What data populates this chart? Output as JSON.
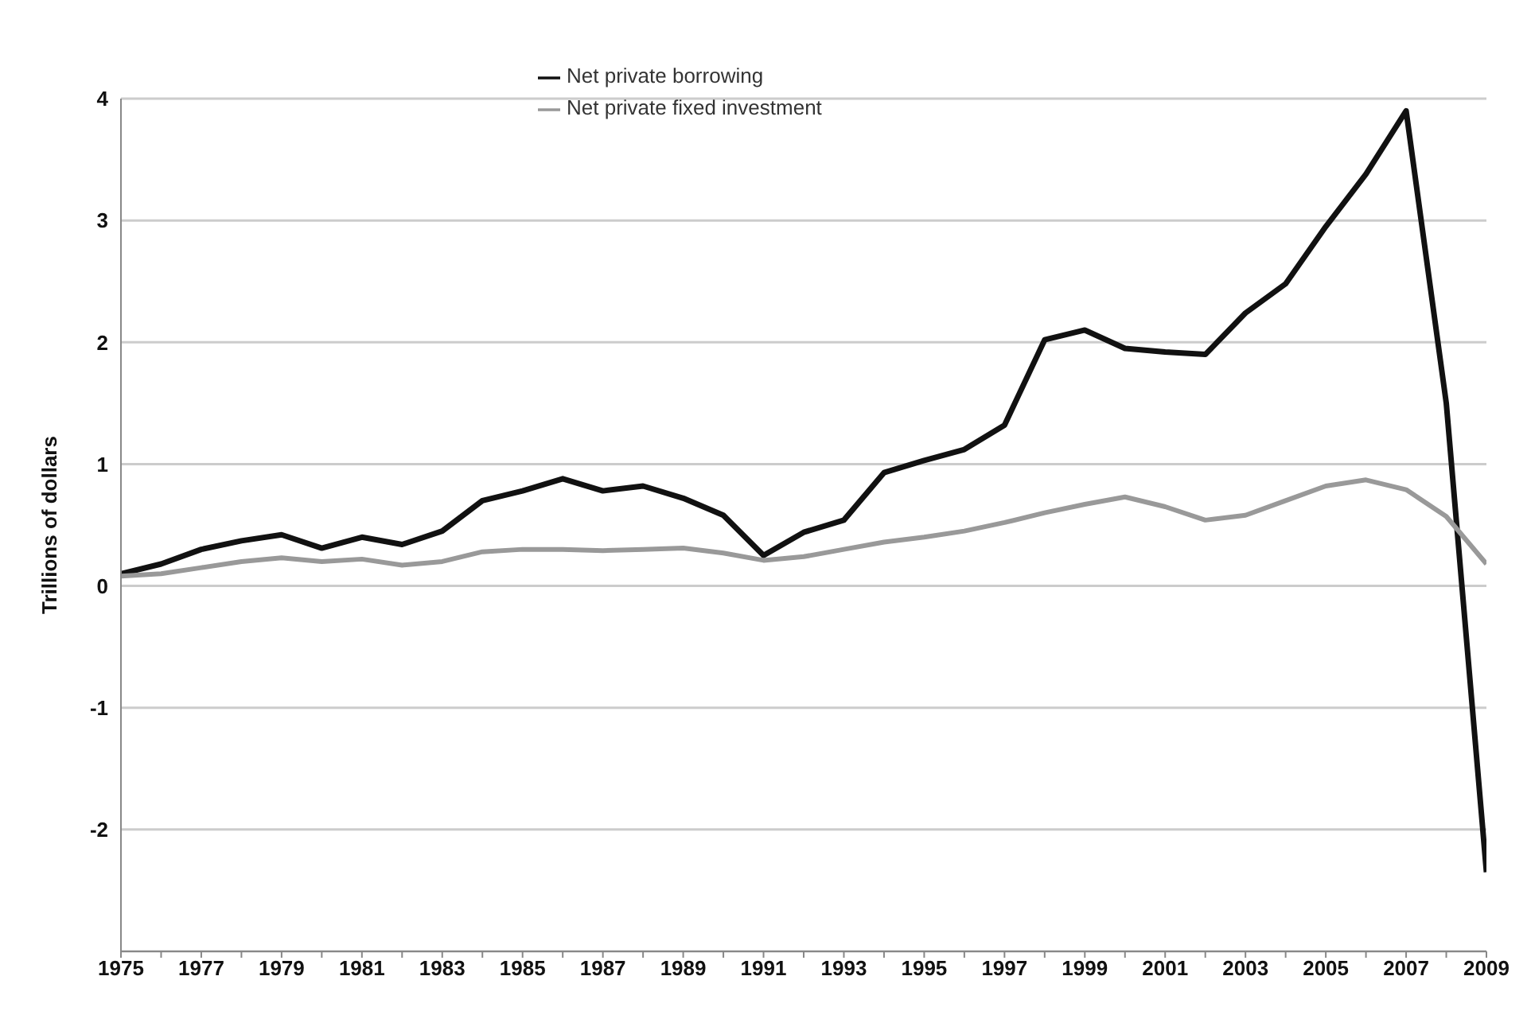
{
  "chart_data": {
    "type": "line",
    "ylabel": "Trillions of dollars",
    "x": [
      1975,
      1976,
      1977,
      1978,
      1979,
      1980,
      1981,
      1982,
      1983,
      1984,
      1985,
      1986,
      1987,
      1988,
      1989,
      1990,
      1991,
      1992,
      1993,
      1994,
      1995,
      1996,
      1997,
      1998,
      1999,
      2000,
      2001,
      2002,
      2003,
      2004,
      2005,
      2006,
      2007,
      2008,
      2009
    ],
    "series": [
      {
        "name": "Net private borrowing",
        "color": "#111111",
        "values": [
          0.1,
          0.18,
          0.3,
          0.37,
          0.42,
          0.31,
          0.4,
          0.34,
          0.45,
          0.7,
          0.78,
          0.88,
          0.78,
          0.82,
          0.72,
          0.58,
          0.25,
          0.44,
          0.54,
          0.93,
          1.03,
          1.12,
          1.32,
          2.02,
          2.1,
          1.95,
          1.92,
          1.9,
          2.24,
          2.48,
          2.95,
          3.38,
          3.9,
          1.5,
          -2.35
        ]
      },
      {
        "name": "Net private fixed investment",
        "color": "#999999",
        "values": [
          0.08,
          0.1,
          0.15,
          0.2,
          0.23,
          0.2,
          0.22,
          0.17,
          0.2,
          0.28,
          0.3,
          0.3,
          0.29,
          0.3,
          0.31,
          0.27,
          0.21,
          0.24,
          0.3,
          0.36,
          0.4,
          0.45,
          0.52,
          0.6,
          0.67,
          0.73,
          0.65,
          0.54,
          0.58,
          0.7,
          0.82,
          0.87,
          0.79,
          0.57,
          0.18
        ]
      }
    ],
    "xlim": [
      1975,
      2009
    ],
    "xticks": [
      1975,
      {
        "value": 1976,
        "label": null
      },
      1977,
      {
        "value": 1978,
        "label": null
      },
      1979,
      {
        "value": 1980,
        "label": null
      },
      1981,
      {
        "value": 1982,
        "label": null
      },
      1983,
      {
        "value": 1984,
        "label": null
      },
      1985,
      {
        "value": 1986,
        "label": null
      },
      1987,
      {
        "value": 1988,
        "label": null
      },
      1989,
      {
        "value": 1990,
        "label": null
      },
      1991,
      {
        "value": 1992,
        "label": null
      },
      1993,
      {
        "value": 1994,
        "label": null
      },
      1995,
      {
        "value": 1996,
        "label": null
      },
      1997,
      {
        "value": 1998,
        "label": null
      },
      1999,
      {
        "value": 2000,
        "label": null
      },
      2001,
      {
        "value": 2002,
        "label": null
      },
      2003,
      {
        "value": 2004,
        "label": null
      },
      2005,
      {
        "value": 2006,
        "label": null
      },
      2007,
      {
        "value": 2008,
        "label": null
      },
      2009
    ],
    "ylim": [
      -3,
      4
    ],
    "yticks": [
      -2,
      -1,
      0,
      1,
      2,
      3,
      4
    ],
    "grid": "y",
    "legend": "top",
    "marker": "none",
    "line_style": "solid"
  }
}
